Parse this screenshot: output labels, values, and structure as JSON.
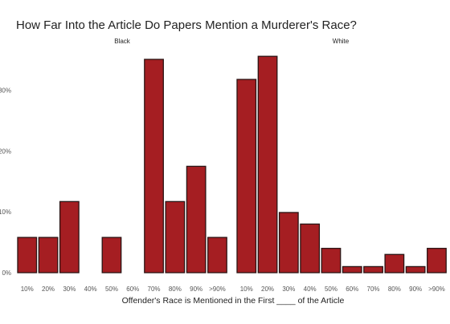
{
  "colors": {
    "bar_fill": "#a51e22",
    "bar_stroke": "#2a1414",
    "background": "#ffffff",
    "text": "#222222"
  },
  "chart_data": {
    "type": "bar",
    "title": "How Far Into the Article Do Papers Mention a Murderer's Race?",
    "xlabel": "Offender's Race is Mentioned in the First ____ of the Article",
    "ylabel": "",
    "ylim": [
      0,
      0.4
    ],
    "yticks": [
      0,
      0.1,
      0.2,
      0.3
    ],
    "ytick_labels": [
      "0%",
      "10%",
      "20%",
      "30%"
    ],
    "grid": false,
    "categories": [
      "10%",
      "20%",
      "30%",
      "40%",
      "50%",
      "60%",
      "70%",
      "80%",
      "90%",
      ">90%"
    ],
    "panels": [
      {
        "name": "Black",
        "values": [
          0.058,
          0.058,
          0.117,
          0.0,
          0.058,
          0.0,
          0.351,
          0.117,
          0.175,
          0.058
        ]
      },
      {
        "name": "White",
        "values": [
          0.318,
          0.356,
          0.099,
          0.08,
          0.04,
          0.01,
          0.01,
          0.03,
          0.01,
          0.04
        ]
      }
    ]
  }
}
